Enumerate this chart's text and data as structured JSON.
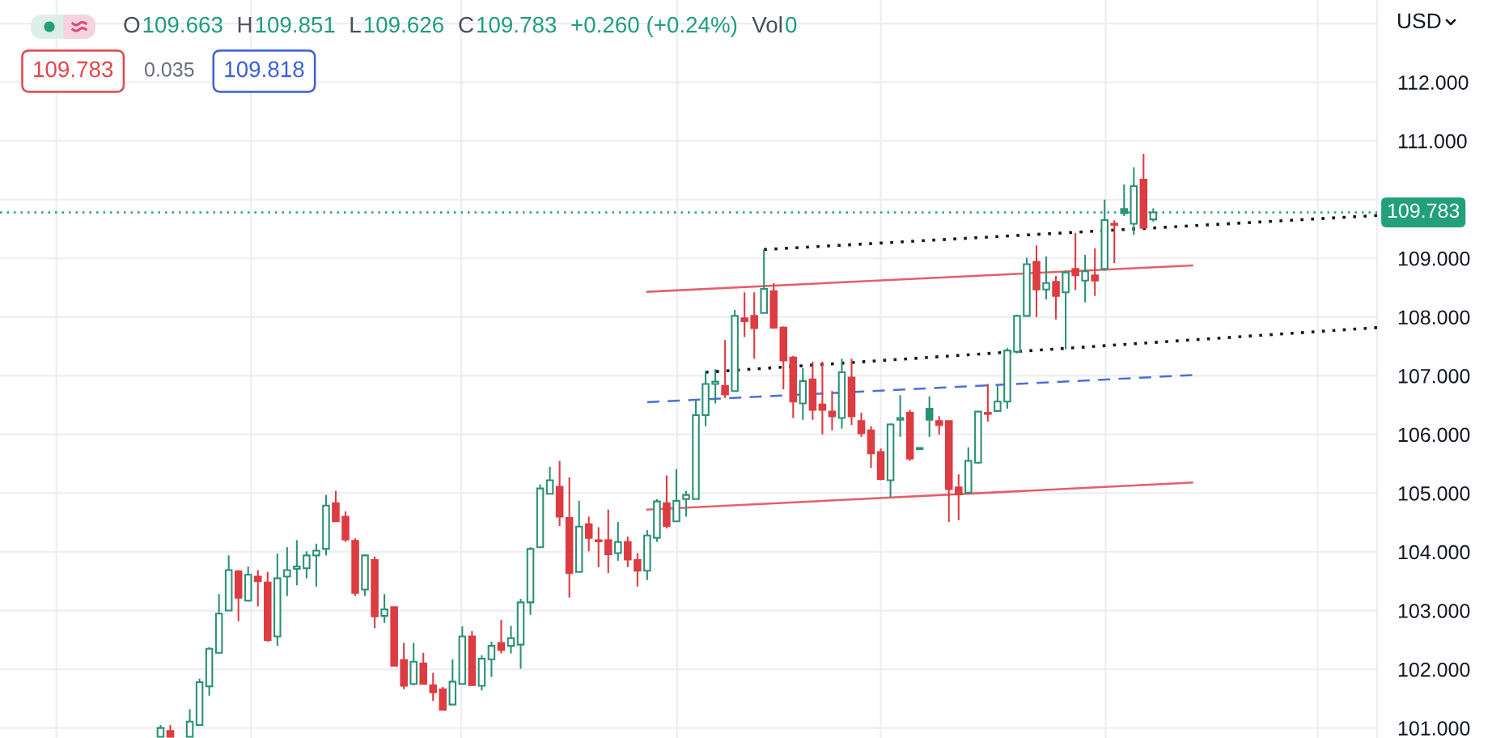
{
  "chart_data": {
    "type": "candlestick",
    "ylabel": "USD",
    "categories": [
      null,
      null,
      null,
      null,
      null,
      null,
      null,
      null,
      null,
      null,
      null,
      null,
      null,
      null,
      null,
      null,
      null,
      null,
      null,
      null,
      null,
      null,
      null,
      null,
      null,
      null,
      null,
      null,
      null,
      null,
      null,
      null,
      null,
      null,
      null,
      null,
      null,
      null,
      null,
      null,
      null,
      null,
      null,
      null,
      null,
      null,
      null,
      null,
      null,
      null,
      null,
      null,
      null,
      null,
      null,
      null,
      null,
      null,
      null,
      null,
      null,
      null,
      null,
      null,
      null,
      null,
      null,
      null,
      null,
      null,
      null,
      null,
      null,
      null,
      null,
      null,
      null,
      null,
      null,
      null,
      null,
      null,
      null,
      null,
      null,
      null,
      null,
      null,
      null,
      null,
      null,
      null,
      null,
      null,
      null,
      null,
      null,
      null,
      null,
      null,
      null,
      null,
      null,
      null,
      null,
      null,
      null,
      null,
      null,
      null,
      null,
      null,
      null,
      null,
      null,
      null,
      null,
      null,
      null,
      null,
      null,
      null,
      null,
      null,
      null,
      null,
      null,
      null,
      null,
      null,
      null,
      null,
      null,
      null,
      null,
      null,
      null,
      null,
      null,
      null,
      null,
      null
    ],
    "ohlc": [
      null,
      null,
      null,
      null,
      null,
      null,
      null,
      null,
      null,
      null,
      null,
      null,
      null,
      null,
      null,
      null,
      [
        100.85,
        101.05,
        100.84,
        101.0
      ],
      [
        100.95,
        101.05,
        100.84,
        100.85
      ],
      null,
      [
        100.85,
        101.32,
        100.84,
        101.11
      ],
      [
        101.05,
        101.84,
        101.05,
        101.78
      ],
      [
        101.71,
        102.38,
        101.55,
        102.35
      ],
      [
        102.28,
        103.28,
        102.27,
        102.95
      ],
      [
        103.0,
        103.94,
        103.0,
        103.69
      ],
      [
        103.67,
        103.69,
        102.82,
        103.22
      ],
      [
        103.17,
        103.75,
        103.15,
        103.61
      ],
      [
        103.58,
        103.69,
        103.07,
        103.5
      ],
      [
        103.48,
        103.66,
        102.47,
        102.5
      ],
      [
        102.56,
        103.97,
        102.4,
        103.55
      ],
      [
        103.58,
        104.08,
        103.25,
        103.69
      ],
      [
        103.71,
        104.2,
        103.43,
        103.75
      ],
      [
        103.72,
        104.01,
        103.55,
        103.94
      ],
      [
        103.94,
        104.14,
        103.41,
        104.02
      ],
      [
        104.05,
        104.97,
        103.94,
        104.79
      ],
      [
        104.83,
        105.04,
        104.52,
        104.52
      ],
      [
        104.6,
        104.69,
        104.17,
        104.21
      ],
      [
        104.19,
        104.23,
        103.25,
        103.3
      ],
      [
        103.36,
        103.96,
        103.25,
        103.94
      ],
      [
        103.86,
        103.92,
        102.7,
        102.9
      ],
      [
        102.91,
        103.28,
        102.79,
        103.02
      ],
      [
        103.06,
        103.06,
        102.06,
        102.06
      ],
      [
        102.16,
        102.45,
        101.66,
        101.72
      ],
      [
        101.75,
        102.45,
        101.73,
        102.13
      ],
      [
        102.1,
        102.28,
        101.75,
        101.75
      ],
      [
        101.73,
        101.94,
        101.46,
        101.61
      ],
      [
        101.66,
        101.7,
        101.31,
        101.31
      ],
      [
        101.4,
        102.17,
        101.4,
        101.79
      ],
      [
        101.75,
        102.73,
        101.75,
        102.56
      ],
      [
        102.56,
        102.65,
        101.72,
        101.73
      ],
      [
        101.72,
        102.24,
        101.64,
        102.18
      ],
      [
        102.17,
        102.47,
        101.87,
        102.4
      ],
      [
        102.45,
        102.84,
        102.27,
        102.33
      ],
      [
        102.4,
        102.74,
        102.27,
        102.53
      ],
      [
        102.42,
        103.2,
        102.01,
        103.14
      ],
      [
        103.14,
        104.08,
        102.93,
        104.05
      ],
      [
        104.08,
        105.15,
        104.08,
        105.08
      ],
      [
        104.99,
        105.45,
        104.99,
        105.22
      ],
      [
        105.11,
        105.55,
        104.44,
        104.6
      ],
      [
        104.58,
        105.27,
        103.22,
        103.64
      ],
      [
        103.66,
        104.87,
        103.66,
        104.43
      ],
      [
        104.47,
        104.6,
        104.01,
        104.24
      ],
      [
        104.2,
        104.42,
        103.74,
        104.18
      ],
      [
        104.2,
        104.72,
        103.64,
        103.96
      ],
      [
        103.98,
        104.51,
        103.85,
        104.17
      ],
      [
        104.17,
        104.26,
        103.74,
        103.87
      ],
      [
        103.86,
        103.98,
        103.41,
        103.68
      ],
      [
        103.68,
        104.37,
        103.52,
        104.28
      ],
      [
        104.24,
        104.9,
        104.17,
        104.86
      ],
      [
        104.83,
        105.3,
        104.4,
        104.44
      ],
      [
        104.52,
        105.41,
        104.52,
        104.87
      ],
      [
        104.9,
        105.04,
        104.6,
        104.97
      ],
      [
        104.9,
        106.58,
        104.9,
        106.33
      ],
      [
        106.33,
        107.08,
        106.14,
        106.86
      ],
      [
        106.86,
        107.11,
        106.53,
        106.9
      ],
      [
        106.83,
        107.61,
        106.62,
        106.68
      ],
      [
        106.74,
        108.12,
        106.74,
        108.02
      ],
      [
        107.98,
        108.42,
        107.66,
        107.93
      ],
      [
        108.02,
        108.42,
        107.29,
        107.81
      ],
      [
        108.07,
        109.15,
        108.07,
        108.48
      ],
      [
        108.44,
        108.58,
        107.8,
        107.82
      ],
      [
        107.82,
        107.84,
        106.77,
        107.26
      ],
      [
        107.31,
        107.34,
        106.28,
        106.56
      ],
      [
        106.53,
        107.13,
        106.25,
        106.91
      ],
      [
        106.94,
        107.24,
        106.25,
        106.42
      ],
      [
        106.51,
        107.24,
        106.0,
        106.42
      ],
      [
        106.39,
        106.74,
        106.07,
        106.31
      ],
      [
        106.28,
        107.29,
        106.1,
        107.06
      ],
      [
        106.97,
        107.29,
        106.16,
        106.31
      ],
      [
        106.23,
        106.37,
        105.96,
        106.02
      ],
      [
        106.07,
        106.14,
        105.43,
        105.68
      ],
      [
        105.7,
        105.76,
        105.22,
        105.24
      ],
      [
        105.22,
        106.19,
        104.93,
        106.17
      ],
      [
        106.25,
        106.67,
        105.96,
        106.28
      ],
      [
        106.37,
        106.42,
        105.55,
        105.59
      ],
      [
        105.77,
        105.78,
        105.74,
        105.75
      ],
      [
        106.44,
        106.65,
        105.96,
        106.25
      ],
      [
        106.23,
        106.31,
        106.0,
        106.16
      ],
      [
        106.23,
        106.23,
        104.51,
        105.07
      ],
      [
        105.1,
        105.32,
        104.54,
        104.98
      ],
      [
        105.01,
        105.78,
        105.0,
        105.55
      ],
      [
        105.52,
        106.39,
        105.5,
        106.39
      ],
      [
        106.37,
        106.86,
        106.22,
        106.35
      ],
      [
        106.4,
        106.83,
        106.4,
        106.56
      ],
      [
        106.56,
        107.47,
        106.44,
        107.43
      ],
      [
        107.41,
        108.04,
        107.38,
        108.02
      ],
      [
        108.02,
        109.01,
        108.02,
        108.9
      ],
      [
        108.94,
        109.22,
        108.0,
        108.47
      ],
      [
        108.47,
        109.03,
        108.3,
        108.58
      ],
      [
        108.6,
        108.7,
        107.96,
        108.36
      ],
      [
        108.42,
        108.79,
        107.45,
        108.76
      ],
      [
        108.82,
        109.43,
        108.46,
        108.71
      ],
      [
        108.62,
        109.06,
        108.25,
        108.78
      ],
      [
        108.71,
        109.17,
        108.36,
        108.62
      ],
      [
        108.82,
        110.0,
        108.79,
        109.65
      ],
      [
        109.59,
        109.65,
        108.92,
        109.57
      ],
      [
        109.84,
        110.26,
        109.72,
        109.77
      ],
      [
        109.59,
        110.55,
        109.4,
        110.23
      ],
      [
        110.34,
        110.78,
        109.52,
        109.52
      ],
      [
        109.663,
        109.851,
        109.626,
        109.783
      ],
      null,
      null,
      null,
      null,
      null,
      null,
      null,
      null,
      null,
      null,
      null,
      null,
      null,
      null,
      null,
      null,
      null,
      null,
      null,
      null,
      null,
      null,
      null
    ],
    "colors": [
      null,
      null,
      null,
      null,
      null,
      null,
      null,
      null,
      null,
      null,
      null,
      null,
      null,
      null,
      null,
      null,
      "#2a9274",
      "#dc3c42",
      null,
      "#2a9274",
      "#2a9274",
      "#2a9274",
      "#2a9274",
      "#2a9274",
      "#dc3c42",
      "#2a9274",
      "#dc3c42",
      "#dc3c42",
      "#2a9274",
      "#2a9274",
      "#2a9274",
      "#2a9274",
      "#2a9274",
      "#2a9274",
      "#dc3c42",
      "#dc3c42",
      "#dc3c42",
      "#2a9274",
      "#dc3c42",
      "#2a9274",
      "#dc3c42",
      "#dc3c42",
      "#2a9274",
      "#dc3c42",
      "#dc3c42",
      "#dc3c42",
      "#2a9274",
      "#2a9274",
      "#dc3c42",
      "#2a9274",
      "#2a9274",
      "#dc3c42",
      "#2a9274",
      "#2a9274",
      "#2a9274",
      "#2a9274",
      "#2a9274",
      "#dc3c42",
      "#dc3c42",
      "#2a9274",
      "#dc3c42",
      "#dc3c42",
      "#dc3c42",
      "#2a9274",
      "#dc3c42",
      "#dc3c42",
      "#2a9274",
      "#2a9274",
      "#dc3c42",
      "#2a9274",
      "#2a9274",
      "#2a9274",
      "#2a9274",
      "#2a9274",
      "#dc3c42",
      "#2a9274",
      "#dc3c42",
      "#dc3c42",
      "#2a9274",
      "#dc3c42",
      "#dc3c42",
      "#dc3c42",
      "#2a9274",
      "#dc3c42",
      "#dc3c42",
      "#dc3c42",
      "#2a9274",
      "#dc3c42",
      "#dc3c42",
      "#dc3c42",
      "#dc3c42",
      "#2a9274",
      "#2a9274",
      "#dc3c42",
      "#2a9274",
      "#2a9274",
      "#dc3c42",
      "#dc3c42",
      "#dc3c42",
      "#2a9274",
      "#2a9274",
      "#dc3c42",
      "#2a9274",
      "#2a9274",
      "#2a9274",
      "#2a9274",
      "#dc3c42",
      "#2a9274",
      "#dc3c42",
      "#2a9274",
      "#dc3c42",
      "#2a9274",
      "#dc3c42",
      "#2a9274",
      "#dc3c42",
      "#2a9274",
      "#2a9274",
      "#dc3c42",
      "#2a9274",
      null,
      null,
      null,
      null,
      null,
      null,
      null,
      null,
      null,
      null,
      null,
      null,
      null,
      null,
      null,
      null,
      null,
      null,
      null,
      null,
      null,
      null,
      null
    ],
    "series": [
      {
        "type": "line",
        "color": "#131722",
        "line_style": "dotted",
        "values": [
          null,
          null,
          null,
          null,
          null,
          null,
          null,
          null,
          null,
          null,
          null,
          null,
          null,
          null,
          null,
          null,
          null,
          null,
          null,
          null,
          null,
          null,
          null,
          null,
          null,
          null,
          null,
          null,
          null,
          null,
          null,
          null,
          null,
          null,
          null,
          null,
          null,
          null,
          null,
          null,
          null,
          null,
          null,
          null,
          null,
          null,
          null,
          null,
          null,
          null,
          null,
          null,
          null,
          null,
          null,
          null,
          null,
          null,
          null,
          null,
          null,
          null,
          null,
          null,
          null,
          null,
          null,
          null,
          null,
          null,
          null,
          null,
          null,
          null,
          null,
          null,
          null,
          null,
          109.15,
          null,
          null,
          null,
          null,
          null,
          null,
          null,
          null,
          null,
          null,
          null,
          null,
          null,
          null,
          null,
          null,
          null,
          null,
          null,
          null,
          null,
          null,
          null,
          null,
          null,
          null,
          null,
          null,
          null,
          null,
          null,
          null,
          null,
          null,
          null,
          null,
          null,
          null,
          null,
          null,
          null,
          null,
          null,
          null,
          null,
          null,
          null,
          null,
          null,
          null,
          null,
          null,
          null,
          null,
          null,
          null,
          null,
          null,
          null,
          null,
          null,
          null,
          109.73
        ]
      },
      {
        "type": "line",
        "color": "#131722",
        "line_style": "dotted",
        "values": [
          null,
          null,
          null,
          null,
          null,
          null,
          null,
          null,
          null,
          null,
          null,
          null,
          null,
          null,
          null,
          null,
          null,
          null,
          null,
          null,
          null,
          null,
          null,
          null,
          null,
          null,
          null,
          null,
          null,
          null,
          null,
          null,
          null,
          null,
          null,
          null,
          null,
          null,
          null,
          null,
          null,
          null,
          null,
          null,
          null,
          null,
          null,
          null,
          null,
          null,
          null,
          null,
          null,
          null,
          null,
          null,
          null,
          null,
          null,
          null,
          null,
          null,
          null,
          null,
          null,
          null,
          null,
          null,
          null,
          null,
          null,
          null,
          107.06,
          null,
          null,
          null,
          null,
          null,
          null,
          null,
          null,
          null,
          null,
          null,
          null,
          null,
          null,
          null,
          null,
          null,
          null,
          null,
          null,
          null,
          null,
          null,
          null,
          null,
          null,
          null,
          null,
          null,
          null,
          null,
          null,
          null,
          null,
          null,
          null,
          null,
          null,
          null,
          null,
          null,
          null,
          null,
          null,
          null,
          null,
          null,
          null,
          null,
          null,
          null,
          null,
          null,
          null,
          null,
          null,
          null,
          null,
          null,
          null,
          null,
          null,
          null,
          null,
          null,
          null,
          null,
          null,
          107.82
        ]
      },
      {
        "type": "line",
        "color": "#e2606a",
        "line_style": "solid",
        "values": [
          null,
          null,
          null,
          null,
          null,
          null,
          null,
          null,
          null,
          null,
          null,
          null,
          null,
          null,
          null,
          null,
          null,
          null,
          null,
          null,
          null,
          null,
          null,
          null,
          null,
          null,
          null,
          null,
          null,
          null,
          null,
          null,
          null,
          null,
          null,
          null,
          null,
          null,
          null,
          null,
          null,
          null,
          null,
          null,
          null,
          null,
          null,
          null,
          null,
          null,
          null,
          null,
          null,
          null,
          null,
          null,
          null,
          null,
          null,
          null,
          null,
          null,
          null,
          null,
          null,
          null,
          108.43,
          null,
          null,
          null,
          null,
          null,
          null,
          null,
          null,
          null,
          null,
          null,
          null,
          null,
          null,
          null,
          null,
          null,
          null,
          null,
          null,
          null,
          null,
          null,
          null,
          null,
          null,
          null,
          null,
          null,
          null,
          null,
          null,
          null,
          null,
          null,
          null,
          null,
          null,
          null,
          null,
          null,
          null,
          null,
          null,
          null,
          null,
          null,
          null,
          null,
          null,
          null,
          null,
          null,
          null,
          null,
          108.88,
          null,
          null,
          null,
          null,
          null,
          null,
          null,
          null,
          null,
          null,
          null,
          null,
          null,
          null,
          null,
          null,
          null,
          null,
          null
        ]
      },
      {
        "type": "line",
        "color": "#4d6fd6",
        "line_style": "dashed",
        "values": [
          null,
          null,
          null,
          null,
          null,
          null,
          null,
          null,
          null,
          null,
          null,
          null,
          null,
          null,
          null,
          null,
          null,
          null,
          null,
          null,
          null,
          null,
          null,
          null,
          null,
          null,
          null,
          null,
          null,
          null,
          null,
          null,
          null,
          null,
          null,
          null,
          null,
          null,
          null,
          null,
          null,
          null,
          null,
          null,
          null,
          null,
          null,
          null,
          null,
          null,
          null,
          null,
          null,
          null,
          null,
          null,
          null,
          null,
          null,
          null,
          null,
          null,
          null,
          null,
          null,
          null,
          106.55,
          null,
          null,
          null,
          null,
          null,
          null,
          null,
          null,
          null,
          null,
          null,
          null,
          null,
          null,
          null,
          null,
          null,
          null,
          null,
          null,
          null,
          null,
          null,
          null,
          null,
          null,
          null,
          null,
          null,
          null,
          null,
          null,
          null,
          null,
          null,
          null,
          null,
          null,
          null,
          null,
          null,
          null,
          null,
          null,
          null,
          null,
          null,
          null,
          null,
          null,
          null,
          null,
          null,
          null,
          null,
          107.01,
          null,
          null,
          null,
          null,
          null,
          null,
          null,
          null,
          null,
          null,
          null,
          null,
          null,
          null,
          null,
          null,
          null,
          null,
          null
        ]
      },
      {
        "type": "line",
        "color": "#e2606a",
        "line_style": "solid",
        "values": [
          null,
          null,
          null,
          null,
          null,
          null,
          null,
          null,
          null,
          null,
          null,
          null,
          null,
          null,
          null,
          null,
          null,
          null,
          null,
          null,
          null,
          null,
          null,
          null,
          null,
          null,
          null,
          null,
          null,
          null,
          null,
          null,
          null,
          null,
          null,
          null,
          null,
          null,
          null,
          null,
          null,
          null,
          null,
          null,
          null,
          null,
          null,
          null,
          null,
          null,
          null,
          null,
          null,
          null,
          null,
          null,
          null,
          null,
          null,
          null,
          null,
          null,
          null,
          null,
          null,
          null,
          104.72,
          null,
          null,
          null,
          null,
          null,
          null,
          null,
          null,
          null,
          null,
          null,
          null,
          null,
          null,
          null,
          null,
          null,
          null,
          null,
          null,
          null,
          null,
          null,
          null,
          null,
          null,
          null,
          null,
          null,
          null,
          null,
          null,
          null,
          null,
          null,
          null,
          null,
          null,
          null,
          null,
          null,
          null,
          null,
          null,
          null,
          null,
          null,
          null,
          null,
          null,
          null,
          null,
          null,
          null,
          null,
          105.18,
          null,
          null,
          null,
          null,
          null,
          null,
          null,
          null,
          null,
          null,
          null,
          null,
          null,
          null,
          null,
          null,
          null,
          null,
          null
        ]
      }
    ],
    "ylim": [
      100.83,
      113.4
    ],
    "yticks": [
      {
        "value": 101,
        "label": "101.000"
      },
      {
        "value": 102,
        "label": "102.000"
      },
      {
        "value": 103,
        "label": "103.000"
      },
      {
        "value": 104,
        "label": "104.000"
      },
      {
        "value": 105,
        "label": "105.000"
      },
      {
        "value": 106,
        "label": "106.000"
      },
      {
        "value": 107,
        "label": "107.000"
      },
      {
        "value": 108,
        "label": "108.000"
      },
      {
        "value": 109,
        "label": "109.000"
      },
      {
        "value": 110,
        "label": null
      },
      {
        "value": 111,
        "label": "111.000"
      },
      {
        "value": 112,
        "label": "112.000"
      },
      {
        "value": 113,
        "label": null
      }
    ],
    "ref_lines": [
      {
        "axis": "y",
        "value": 109.783,
        "label": "109.783",
        "color": "#22a07a",
        "line_style": "dotted"
      }
    ],
    "grid": true,
    "annotations": [
      "O",
      "109.663",
      "H",
      "109.851",
      "L",
      "109.626",
      "C",
      "109.783",
      "+0.260 (+0.24%)",
      "Vol",
      "0",
      "109.783",
      "0.035",
      "109.818"
    ]
  }
}
